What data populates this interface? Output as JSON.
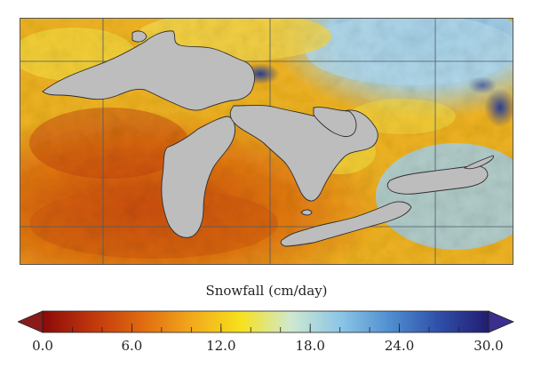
{
  "figure": {
    "colorbar": {
      "title": "Snowfall (cm/day)",
      "min": 0,
      "max": 30,
      "ticks": [
        "0.0",
        "6.0",
        "12.0",
        "18.0",
        "24.0",
        "30.0"
      ],
      "extend_left_color": "#8b1a1a",
      "extend_right_color": "#3a2f8c",
      "colors": [
        "#8b0a0a",
        "#c0360c",
        "#e06a10",
        "#f2a81c",
        "#f7e11c",
        "#cfe9d0",
        "#8cc6e6",
        "#4f8fd0",
        "#2f4fa8",
        "#231c70"
      ]
    },
    "map": {
      "land_color": "#c8c8c8",
      "lake_color": "#b8b8b8",
      "border_color": "#333333",
      "gridline_color": "#4a5a68"
    }
  }
}
